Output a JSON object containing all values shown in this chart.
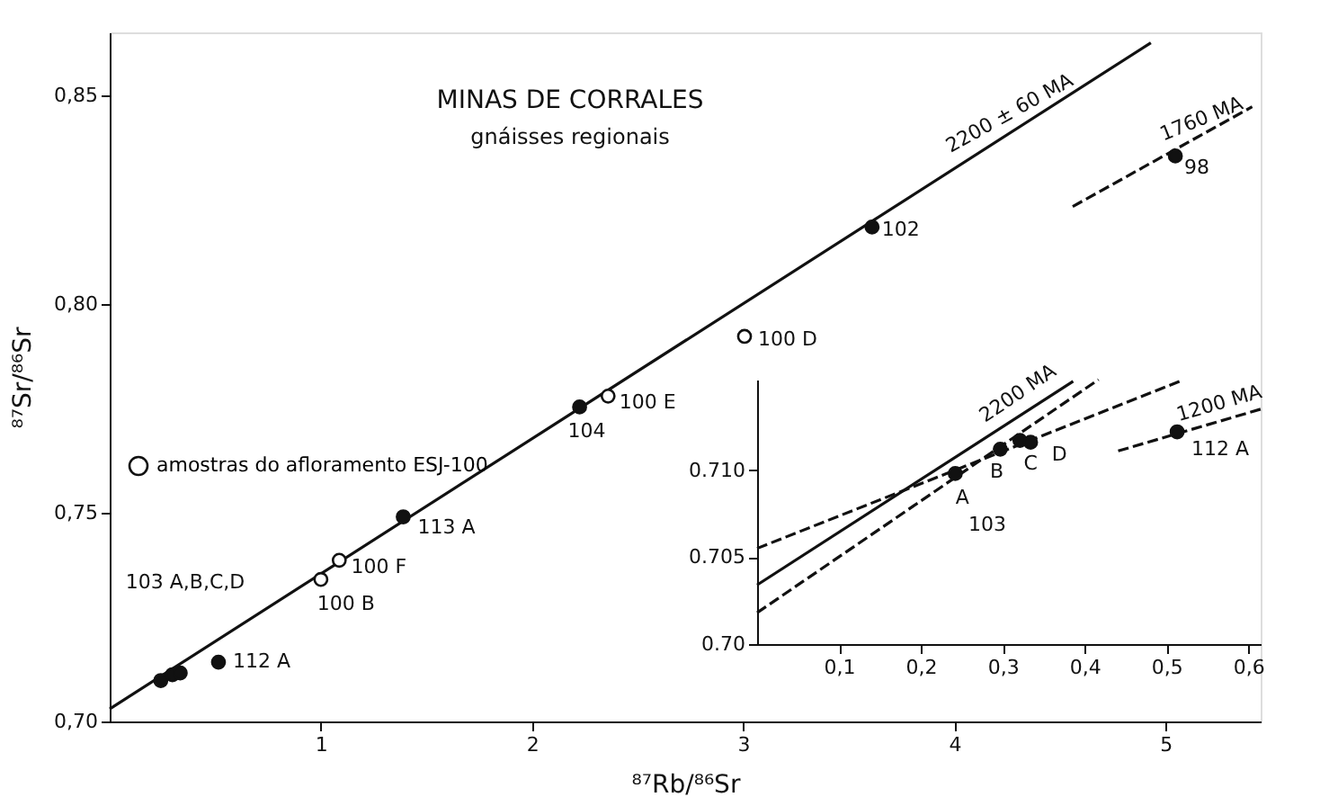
{
  "chart_data": [
    {
      "type": "scatter",
      "title": "MINAS DE CORRALES",
      "subtitle": "gnáisses regionais",
      "xlabel": "⁸⁷Rb/⁸⁶Sr",
      "ylabel": "⁸⁷Sr/⁸⁶Sr",
      "xlim": [
        0,
        5.45
      ],
      "ylim": [
        0.7,
        0.865
      ],
      "xticks": [
        1,
        2,
        3,
        4,
        5
      ],
      "yticks": [
        {
          "value": 0.7,
          "label": "0,70"
        },
        {
          "value": 0.75,
          "label": "0,75"
        },
        {
          "value": 0.8,
          "label": "0,80"
        },
        {
          "value": 0.85,
          "label": "0,85"
        }
      ],
      "legend": "left",
      "series": [
        {
          "type": "line",
          "color": "#111111",
          "line_style": "solid",
          "x": [
            0,
            4.93
          ],
          "values": [
            0.703,
            0.8625
          ]
        },
        {
          "type": "line",
          "color": "#111111",
          "line_style": "dashed",
          "x": [
            4.56,
            5.41
          ],
          "values": [
            0.8233,
            0.8472
          ]
        },
        {
          "color": "#111111",
          "marker": "circle",
          "x": [
            0.242,
            0.297,
            0.334,
            0.515,
            1.39,
            2.225,
            3.61,
            5.046
          ],
          "values": [
            0.7098,
            0.7112,
            0.7116,
            0.7142,
            0.749,
            0.7753,
            0.8184,
            0.8354
          ]
        },
        {
          "name": "amostras do afloramento ESJ-100",
          "color": "#ffffff",
          "marker": "circle",
          "x": [
            1.0,
            1.087,
            2.36,
            3.006
          ],
          "values": [
            0.734,
            0.7386,
            0.7779,
            0.7922
          ]
        }
      ],
      "annotations": [
        {
          "text": "2200 ± 60 MA",
          "x": 4.3,
          "y": 0.8421
        },
        {
          "text": "1760 MA",
          "x": 5.2,
          "y": 0.8405
        },
        {
          "text": "98",
          "x": 5.046,
          "y": 0.8354
        },
        {
          "text": "102",
          "x": 3.61,
          "y": 0.8184
        },
        {
          "text": "100 D",
          "x": 3.006,
          "y": 0.7922
        },
        {
          "text": "100 E",
          "x": 2.36,
          "y": 0.7779
        },
        {
          "text": "104",
          "x": 2.225,
          "y": 0.7753
        },
        {
          "text": "113 A",
          "x": 1.39,
          "y": 0.749
        },
        {
          "text": "100 F",
          "x": 1.087,
          "y": 0.7386
        },
        {
          "text": "100 B",
          "x": 1.0,
          "y": 0.734
        },
        "103 A,B,C,D",
        {
          "text": "112 A",
          "x": 0.515,
          "y": 0.7142
        }
      ]
    },
    {
      "type": "scatter",
      "xlim": [
        0,
        0.615
      ],
      "ylim": [
        0.7,
        0.7152
      ],
      "xticks": [
        {
          "value": 0.1,
          "label": "0,1"
        },
        {
          "value": 0.2,
          "label": "0,2"
        },
        {
          "value": 0.3,
          "label": "0,3"
        },
        {
          "value": 0.4,
          "label": "0,4"
        },
        {
          "value": 0.5,
          "label": "0,5"
        },
        {
          "value": 0.6,
          "label": "0,6"
        }
      ],
      "yticks": [
        {
          "value": 0.7,
          "label": "0.70"
        },
        0.705,
        {
          "value": 0.71,
          "label": "0.710"
        }
      ],
      "series": [
        {
          "type": "line",
          "color": "#111111",
          "line_style": "solid",
          "x": [
            0,
            0.386
          ],
          "values": [
            0.7034,
            0.7151
          ]
        },
        {
          "type": "line",
          "color": "#111111",
          "line_style": "dashed",
          "x": [
            0,
            0.417
          ],
          "values": [
            0.7018,
            0.7152
          ]
        },
        {
          "type": "line",
          "color": "#111111",
          "line_style": "dashed",
          "x": [
            0,
            0.516
          ],
          "values": [
            0.7055,
            0.7151
          ]
        },
        {
          "type": "line",
          "color": "#111111",
          "line_style": "dashed",
          "x": [
            0.441,
            0.615
          ],
          "values": [
            0.7111,
            0.7135
          ]
        },
        {
          "color": "#111111",
          "marker": "circle",
          "x": [
            0.242,
            0.297,
            0.321,
            0.334,
            0.513
          ],
          "values": [
            0.7098,
            0.7112,
            0.7117,
            0.7116,
            0.7122
          ]
        }
      ],
      "annotations": [
        {
          "text": "2200 MA",
          "x": 0.33,
          "y": 0.7136
        },
        {
          "text": "1200 MA",
          "x": 0.57,
          "y": 0.7129
        },
        {
          "text": "A",
          "x": 0.242,
          "y": 0.7098
        },
        {
          "text": "B",
          "x": 0.297,
          "y": 0.7112
        },
        {
          "text": "C",
          "x": 0.321,
          "y": 0.7117
        },
        {
          "text": "D",
          "x": 0.334,
          "y": 0.7116
        },
        {
          "text": "112 A",
          "x": 0.513,
          "y": 0.7122
        },
        "103"
      ]
    }
  ]
}
